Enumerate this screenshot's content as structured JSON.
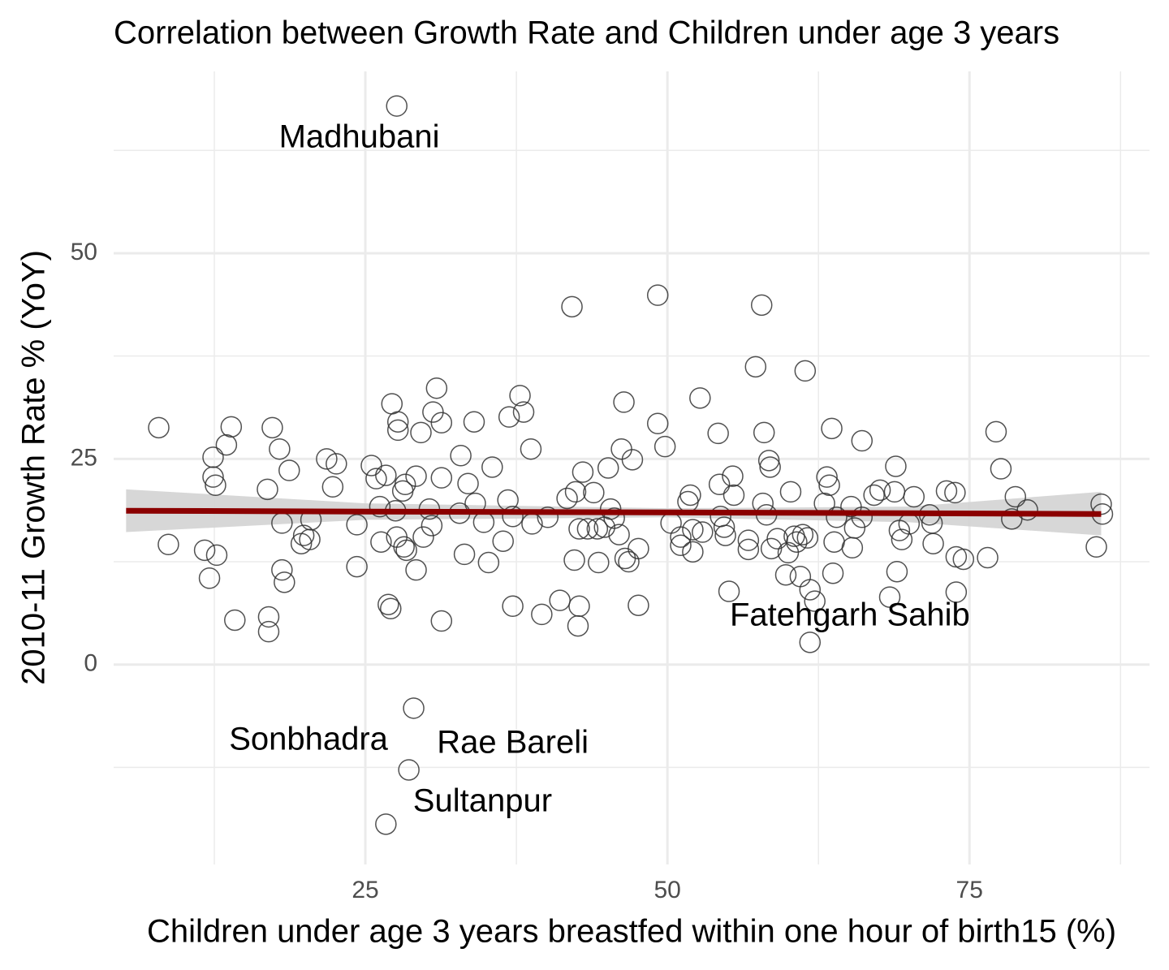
{
  "chart_data": {
    "type": "scatter",
    "title": "Correlation between Growth Rate and Children under age 3 years",
    "x_label": "Children under age 3 years breastfed within one hour of birth15 (%)",
    "y_label": "2010-11 Growth Rate % (YoY)",
    "xlim": [
      4.17,
      89.9
    ],
    "ylim": [
      -24.3,
      72.1
    ],
    "xticks": [
      25,
      50,
      75
    ],
    "yticks": [
      0,
      25,
      50
    ],
    "minor_xticks": [
      12.5,
      37.5,
      62.5,
      87.5
    ],
    "minor_yticks": [
      -12.5,
      12.5,
      37.5,
      62.5
    ],
    "grid": true,
    "color": "#333333",
    "x": [
      7.9,
      8.7,
      11.7,
      12.1,
      12.4,
      12.4,
      12.6,
      12.7,
      13.5,
      13.9,
      14.2,
      16.9,
      17.0,
      17.0,
      17.3,
      17.9,
      18.1,
      18.1,
      18.3,
      18.7,
      19.7,
      19.9,
      20.4,
      20.5,
      21.8,
      22.3,
      22.6,
      24.3,
      24.3,
      25.5,
      25.9,
      26.2,
      26.3,
      26.7,
      26.9,
      27.1,
      27.2,
      27.5,
      27.6,
      27.7,
      27.7,
      28.1,
      28.2,
      28.3,
      28.4,
      29.2,
      29.2,
      29.6,
      29.8,
      30.3,
      30.5,
      30.6,
      30.9,
      31.3,
      31.3,
      31.3,
      32.9,
      33.2,
      33.5,
      32.8,
      34.0,
      34.1,
      34.8,
      35.2,
      35.5,
      36.4,
      36.8,
      36.9,
      37.2,
      37.2,
      37.8,
      38.1,
      38.8,
      38.7,
      39.6,
      40.1,
      41.1,
      41.7,
      42.1,
      42.3,
      42.4,
      42.7,
      42.6,
      42.7,
      43.0,
      43.4,
      43.9,
      44.2,
      44.3,
      44.8,
      45.1,
      45.3,
      45.6,
      46.0,
      46.2,
      46.4,
      46.5,
      46.8,
      47.1,
      47.6,
      47.6,
      49.2,
      49.2,
      49.8,
      50.3,
      51.1,
      51.1,
      51.7,
      51.9,
      52.1,
      52.1,
      52.7,
      52.9,
      54.2,
      54.3,
      54.4,
      54.7,
      54.8,
      55.1,
      55.4,
      55.5,
      56.7,
      56.7,
      57.3,
      57.8,
      57.9,
      58.0,
      58.2,
      58.4,
      58.5,
      58.6,
      59.1,
      59.8,
      60.0,
      60.2,
      60.5,
      60.7,
      61.0,
      61.2,
      61.4,
      61.6,
      61.8,
      61.8,
      62.2,
      63.0,
      63.2,
      63.4,
      63.6,
      63.7,
      63.8,
      64.0,
      65.2,
      65.3,
      65.5,
      66.1,
      66.1,
      67.1,
      67.6,
      68.4,
      68.8,
      68.9,
      69.0,
      69.4,
      69.2,
      70.0,
      70.4,
      71.7,
      72.0,
      71.9,
      73.1,
      73.8,
      73.9,
      73.9,
      74.5,
      76.5,
      77.2,
      77.6,
      78.5,
      78.8,
      79.8,
      85.5,
      85.9,
      86.0,
      27.6,
      29.0,
      28.6,
      26.7
    ],
    "values": [
      28.8,
      14.6,
      13.9,
      10.5,
      25.2,
      22.8,
      21.8,
      13.3,
      26.7,
      28.9,
      5.4,
      21.3,
      5.8,
      4.0,
      28.8,
      26.2,
      17.2,
      11.5,
      10.0,
      23.6,
      14.7,
      15.7,
      15.2,
      17.6,
      25.0,
      21.6,
      24.4,
      17.0,
      11.9,
      24.2,
      22.6,
      19.2,
      14.9,
      23.0,
      7.3,
      6.8,
      31.7,
      18.7,
      15.5,
      29.5,
      28.5,
      21.1,
      14.3,
      21.9,
      13.9,
      22.9,
      11.5,
      28.2,
      15.5,
      18.9,
      16.9,
      30.7,
      33.6,
      29.4,
      22.7,
      5.3,
      25.4,
      13.4,
      22.0,
      18.4,
      29.5,
      19.6,
      17.3,
      12.4,
      24.0,
      15.0,
      20.0,
      30.1,
      7.1,
      18.0,
      32.7,
      30.7,
      17.1,
      26.2,
      6.1,
      17.9,
      7.8,
      20.2,
      43.5,
      12.7,
      21.0,
      7.1,
      4.7,
      16.5,
      23.4,
      16.5,
      20.9,
      16.5,
      12.4,
      16.7,
      23.9,
      18.9,
      17.8,
      15.8,
      26.2,
      31.9,
      12.9,
      12.5,
      24.9,
      7.2,
      14.1,
      44.9,
      29.3,
      26.5,
      17.2,
      15.5,
      14.5,
      19.8,
      20.6,
      16.4,
      13.7,
      32.4,
      16.1,
      28.1,
      21.9,
      18.0,
      16.7,
      15.7,
      8.9,
      22.9,
      20.6,
      15.1,
      14.0,
      36.2,
      43.7,
      19.6,
      28.2,
      18.2,
      24.8,
      24.0,
      14.1,
      15.3,
      10.9,
      13.6,
      21.0,
      15.6,
      14.9,
      10.7,
      15.8,
      35.7,
      15.4,
      2.7,
      9.1,
      7.7,
      19.6,
      22.8,
      21.8,
      28.7,
      11.1,
      14.9,
      17.9,
      19.2,
      14.2,
      16.6,
      27.2,
      17.9,
      20.6,
      21.2,
      8.2,
      21.0,
      24.1,
      11.3,
      15.2,
      16.3,
      17.1,
      20.4,
      18.2,
      14.7,
      17.2,
      21.1,
      20.9,
      13.1,
      8.8,
      12.8,
      13.0,
      28.3,
      23.8,
      17.7,
      20.4,
      18.8,
      14.3,
      19.5,
      18.3,
      67.9,
      -5.3,
      -12.8,
      -19.4
    ],
    "trend": {
      "color": "#8b0000",
      "band_color": "#d3d3d3",
      "x": [
        5.2,
        25,
        50,
        70,
        85.9
      ],
      "y": [
        18.7,
        18.6,
        18.5,
        18.4,
        18.3
      ],
      "lower": [
        16.1,
        17.6,
        17.9,
        17.3,
        15.7
      ],
      "upper": [
        21.3,
        19.6,
        19.0,
        19.2,
        21.0
      ]
    },
    "annotations": [
      {
        "text": "Madhubani",
        "x": 24.5,
        "y": 63.9
      },
      {
        "text": "Sonbhadra",
        "x": 20.3,
        "y": -9.3
      },
      {
        "text": "Rae Bareli",
        "x": 37.2,
        "y": -9.7
      },
      {
        "text": "Sultanpur",
        "x": 34.7,
        "y": -16.8
      },
      {
        "text": "Fatehgarh Sahib",
        "x": 65.1,
        "y": 5.8
      }
    ]
  }
}
